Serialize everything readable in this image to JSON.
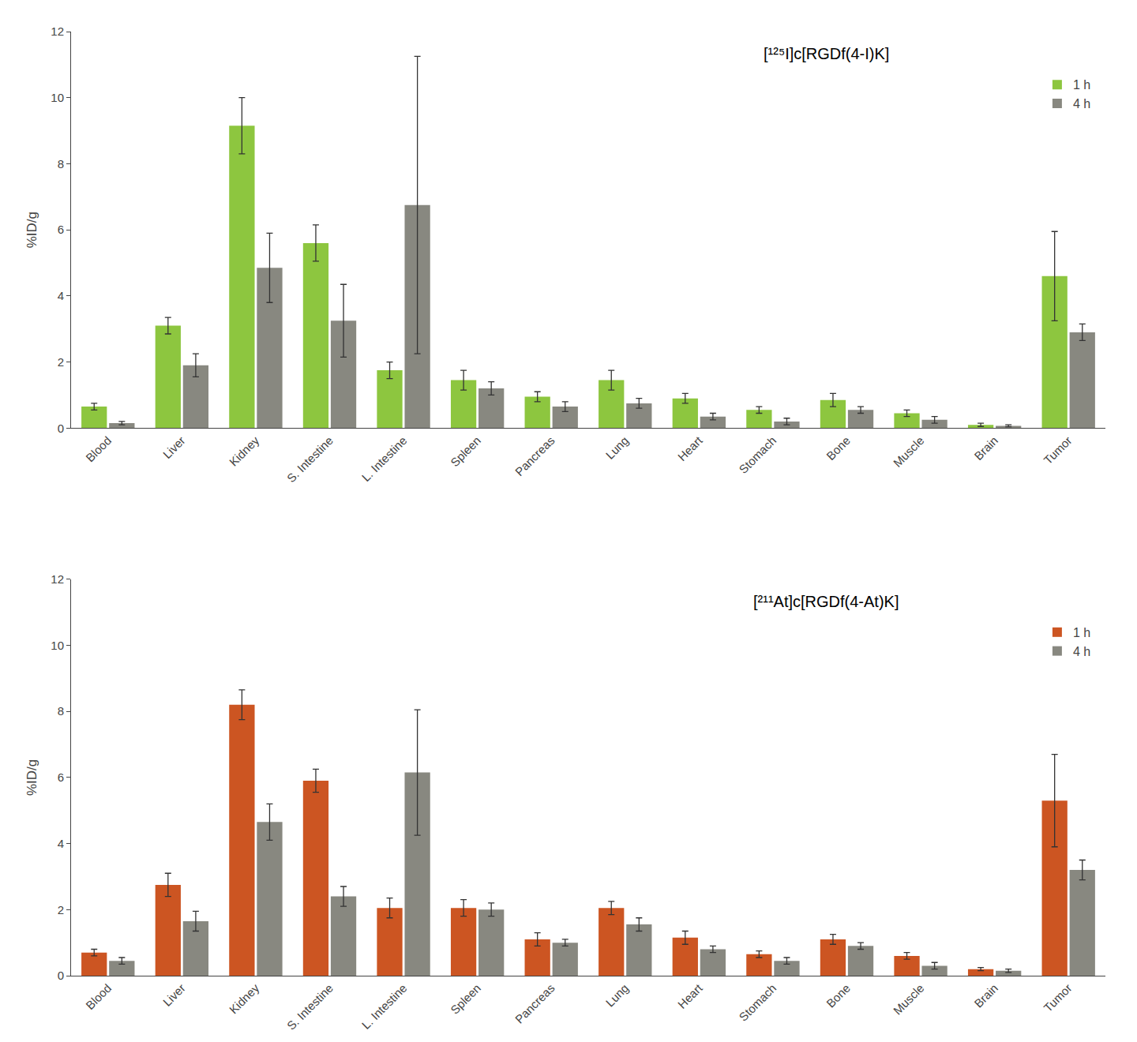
{
  "chart_data": [
    {
      "type": "bar",
      "title": "[¹²⁵I]c[RGDf(4-I)K]",
      "categories": [
        "Blood",
        "Liver",
        "Kidney",
        "S. Intestine",
        "L. Intestine",
        "Spleen",
        "Pancreas",
        "Lung",
        "Heart",
        "Stomach",
        "Bone",
        "Muscle",
        "Brain",
        "Tumor"
      ],
      "series": [
        {
          "name": "1 h",
          "color": "#8dc63f",
          "values": [
            0.65,
            3.1,
            9.15,
            5.6,
            1.75,
            1.45,
            0.95,
            1.45,
            0.9,
            0.55,
            0.85,
            0.45,
            0.1,
            4.6
          ],
          "errors": [
            0.1,
            0.25,
            0.85,
            0.55,
            0.25,
            0.3,
            0.15,
            0.3,
            0.15,
            0.1,
            0.2,
            0.1,
            0.05,
            1.35
          ]
        },
        {
          "name": "4 h",
          "color": "#888880",
          "values": [
            0.15,
            1.9,
            4.85,
            3.25,
            6.75,
            1.2,
            0.65,
            0.75,
            0.35,
            0.2,
            0.55,
            0.25,
            0.07,
            2.9
          ],
          "errors": [
            0.05,
            0.35,
            1.05,
            1.1,
            4.5,
            0.2,
            0.15,
            0.15,
            0.1,
            0.1,
            0.1,
            0.1,
            0.03,
            0.25
          ]
        }
      ],
      "ylabel": "%ID/g",
      "ylim": [
        0,
        12
      ],
      "yticks": [
        0,
        2,
        4,
        6,
        8,
        10,
        12
      ],
      "grid": false,
      "legend": "upper right"
    },
    {
      "type": "bar",
      "title": "[²¹¹At]c[RGDf(4-At)K]",
      "categories": [
        "Blood",
        "Liver",
        "Kidney",
        "S. Intestine",
        "L. Intestine",
        "Spleen",
        "Pancreas",
        "Lung",
        "Heart",
        "Stomach",
        "Bone",
        "Muscle",
        "Brain",
        "Tumor"
      ],
      "series": [
        {
          "name": "1 h",
          "color": "#cc5522",
          "values": [
            0.7,
            2.75,
            8.2,
            5.9,
            2.05,
            2.05,
            1.1,
            2.05,
            1.15,
            0.65,
            1.1,
            0.6,
            0.2,
            5.3
          ],
          "errors": [
            0.1,
            0.35,
            0.45,
            0.35,
            0.3,
            0.25,
            0.2,
            0.2,
            0.2,
            0.1,
            0.15,
            0.1,
            0.05,
            1.4
          ]
        },
        {
          "name": "4 h",
          "color": "#888880",
          "values": [
            0.45,
            1.65,
            4.65,
            2.4,
            6.15,
            2.0,
            1.0,
            1.55,
            0.8,
            0.45,
            0.9,
            0.3,
            0.15,
            3.2
          ],
          "errors": [
            0.1,
            0.3,
            0.55,
            0.3,
            1.9,
            0.2,
            0.1,
            0.2,
            0.1,
            0.1,
            0.1,
            0.1,
            0.05,
            0.3
          ]
        }
      ],
      "ylabel": "%ID/g",
      "ylim": [
        0,
        12
      ],
      "yticks": [
        0,
        2,
        4,
        6,
        8,
        10,
        12
      ],
      "grid": false,
      "legend": "upper right"
    }
  ]
}
